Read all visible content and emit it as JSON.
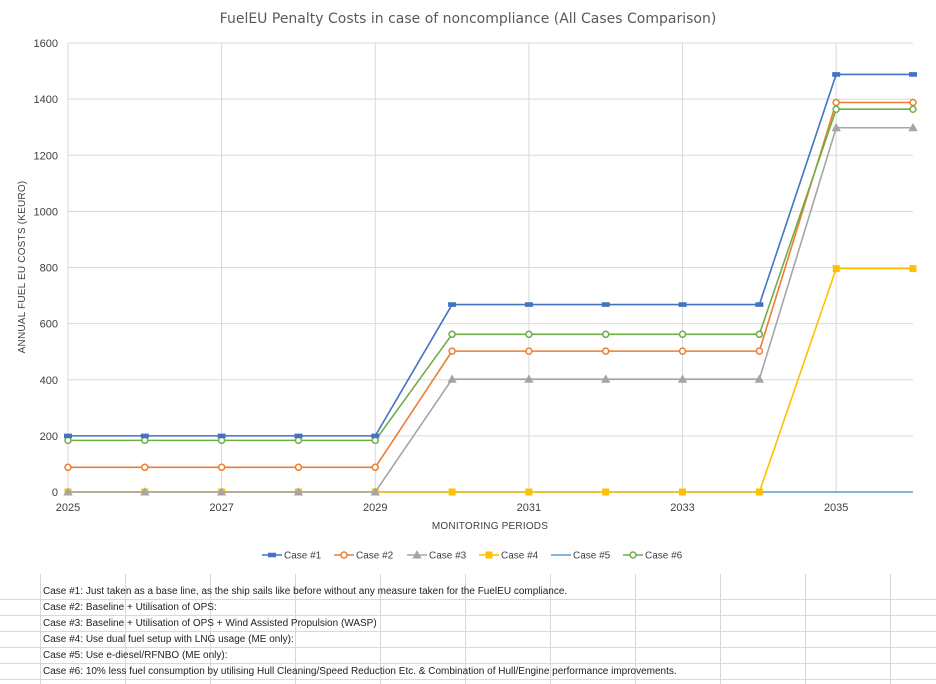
{
  "chart_data": {
    "type": "line",
    "title": "FuelEU Penalty Costs in case of noncompliance (All Cases Comparison)",
    "xlabel": "MONITORING PERIODS",
    "ylabel": "ANNUAL FUEL EU COSTS (KEURO)",
    "x": [
      2025,
      2026,
      2027,
      2028,
      2029,
      2030,
      2031,
      2032,
      2033,
      2034,
      2035,
      2036
    ],
    "x_tick_labels": [
      "2025",
      "2027",
      "2029",
      "2031",
      "2033",
      "2035"
    ],
    "x_tick_values": [
      2025,
      2027,
      2029,
      2031,
      2033,
      2035
    ],
    "xlim": [
      2025,
      2036
    ],
    "ylim": [
      0,
      1600
    ],
    "y_ticks": [
      0,
      200,
      400,
      600,
      800,
      1000,
      1200,
      1400,
      1600
    ],
    "grid": true,
    "legend_position": "bottom",
    "series": [
      {
        "name": "Case #1",
        "color": "#4472C4",
        "marker": "diamond",
        "values": [
          200,
          200,
          200,
          200,
          200,
          668,
          668,
          668,
          668,
          668,
          1488,
          1488
        ]
      },
      {
        "name": "Case #2",
        "color": "#ED7D31",
        "marker": "circle",
        "values": [
          88,
          88,
          88,
          88,
          88,
          502,
          502,
          502,
          502,
          502,
          1388,
          1388
        ]
      },
      {
        "name": "Case #3",
        "color": "#A5A5A5",
        "marker": "triangle",
        "values": [
          0,
          0,
          0,
          0,
          0,
          402,
          402,
          402,
          402,
          402,
          1298,
          1298
        ]
      },
      {
        "name": "Case #4",
        "color": "#FFC000",
        "marker": "square",
        "values": [
          0,
          0,
          0,
          0,
          0,
          0,
          0,
          0,
          0,
          0,
          796,
          796
        ]
      },
      {
        "name": "Case #5",
        "color": "#5B9BD5",
        "marker": "none",
        "values": [
          0,
          0,
          0,
          0,
          0,
          0,
          0,
          0,
          0,
          0,
          0,
          0
        ]
      },
      {
        "name": "Case #6",
        "color": "#70AD47",
        "marker": "circle",
        "values": [
          184,
          184,
          184,
          184,
          184,
          562,
          562,
          562,
          562,
          562,
          1364,
          1364
        ]
      }
    ]
  },
  "notes": [
    {
      "label": "Case #1:",
      "text": "Just taken as a base line, as the ship sails like before without any measure taken for the FuelEU compliance."
    },
    {
      "label": "Case #2:",
      "text": "Baseline + Utilisation of OPS:"
    },
    {
      "label": "Case #3:",
      "text": "Baseline + Utilisation of OPS + Wind Assisted Propulsion (WASP)"
    },
    {
      "label": "Case #4:",
      "text": "Use dual fuel setup with LNG usage (ME only):"
    },
    {
      "label": "Case #5:",
      "text": "Use e-diesel/RFNBO (ME only):"
    },
    {
      "label": "Case #6:",
      "text": "10% less fuel consumption by utilising Hull Cleaning/Speed Reduction Etc. & Combination of Hull/Engine performance improvements."
    }
  ]
}
